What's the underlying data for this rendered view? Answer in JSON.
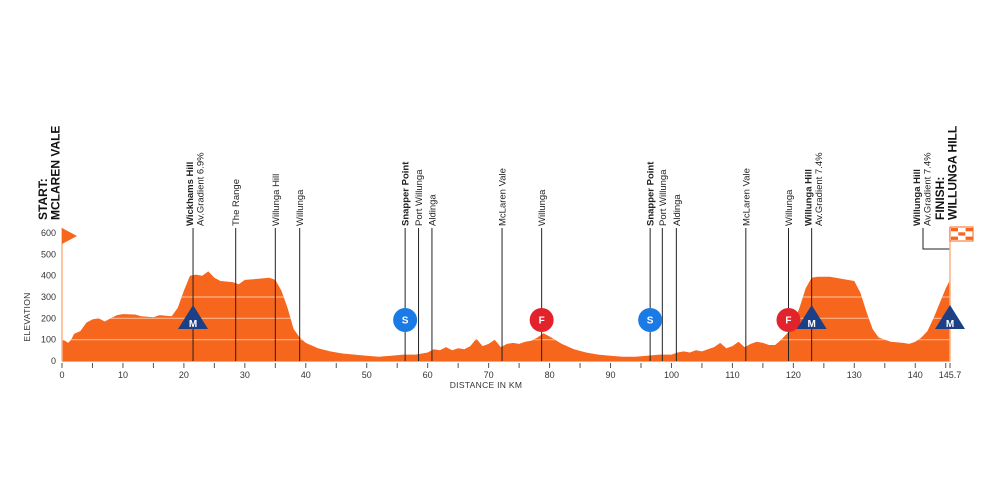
{
  "chart_data": {
    "type": "area",
    "xlabel": "DISTANCE IN KM",
    "ylabel": "ELEVATION",
    "xlim": [
      0,
      145.7
    ],
    "ylim": [
      0,
      600
    ],
    "x_ticks": [
      "0",
      "10",
      "20",
      "30",
      "40",
      "50",
      "60",
      "70",
      "80",
      "90",
      "100",
      "110",
      "120",
      "130",
      "140",
      "145.7"
    ],
    "y_ticks": [
      "0",
      "100",
      "200",
      "300",
      "400",
      "500",
      "600"
    ],
    "grid": "horizontal lines inside filled area",
    "colors": {
      "profile": "#f7661d",
      "grid": "#fbb487",
      "mountain": "#1c3f86",
      "sprint": "#1a7ae6",
      "feed": "#e3232b",
      "start_line": "#fbb487"
    },
    "profile": [
      [
        0,
        100
      ],
      [
        0.5,
        95
      ],
      [
        1,
        85
      ],
      [
        1.5,
        100
      ],
      [
        2,
        128
      ],
      [
        3,
        140
      ],
      [
        4,
        180
      ],
      [
        5,
        195
      ],
      [
        6,
        200
      ],
      [
        7,
        185
      ],
      [
        8,
        200
      ],
      [
        9,
        215
      ],
      [
        10,
        220
      ],
      [
        12,
        218
      ],
      [
        13,
        210
      ],
      [
        15,
        205
      ],
      [
        16,
        215
      ],
      [
        18,
        210
      ],
      [
        19,
        250
      ],
      [
        20,
        330
      ],
      [
        21,
        400
      ],
      [
        22,
        405
      ],
      [
        23,
        400
      ],
      [
        24,
        420
      ],
      [
        25,
        390
      ],
      [
        26,
        375
      ],
      [
        28,
        370
      ],
      [
        29,
        360
      ],
      [
        30,
        380
      ],
      [
        32,
        385
      ],
      [
        34,
        390
      ],
      [
        35,
        380
      ],
      [
        36,
        330
      ],
      [
        37,
        250
      ],
      [
        38,
        150
      ],
      [
        39,
        110
      ],
      [
        40,
        85
      ],
      [
        42,
        60
      ],
      [
        44,
        45
      ],
      [
        46,
        35
      ],
      [
        48,
        30
      ],
      [
        50,
        25
      ],
      [
        52,
        20
      ],
      [
        54,
        25
      ],
      [
        56,
        30
      ],
      [
        58,
        30
      ],
      [
        60,
        40
      ],
      [
        61,
        55
      ],
      [
        62,
        50
      ],
      [
        63,
        65
      ],
      [
        64,
        50
      ],
      [
        65,
        60
      ],
      [
        66,
        55
      ],
      [
        67,
        70
      ],
      [
        68,
        105
      ],
      [
        69,
        70
      ],
      [
        70,
        80
      ],
      [
        71,
        100
      ],
      [
        72,
        65
      ],
      [
        73,
        80
      ],
      [
        74,
        85
      ],
      [
        75,
        80
      ],
      [
        76,
        90
      ],
      [
        77,
        95
      ],
      [
        78,
        110
      ],
      [
        79,
        130
      ],
      [
        80,
        115
      ],
      [
        82,
        80
      ],
      [
        84,
        55
      ],
      [
        86,
        40
      ],
      [
        88,
        30
      ],
      [
        90,
        25
      ],
      [
        92,
        20
      ],
      [
        94,
        20
      ],
      [
        96,
        25
      ],
      [
        98,
        30
      ],
      [
        100,
        30
      ],
      [
        101,
        40
      ],
      [
        102,
        45
      ],
      [
        103,
        40
      ],
      [
        104,
        50
      ],
      [
        105,
        45
      ],
      [
        106,
        55
      ],
      [
        107,
        65
      ],
      [
        108,
        85
      ],
      [
        109,
        60
      ],
      [
        110,
        70
      ],
      [
        111,
        90
      ],
      [
        112,
        65
      ],
      [
        113,
        80
      ],
      [
        114,
        90
      ],
      [
        115,
        85
      ],
      [
        116,
        75
      ],
      [
        117,
        75
      ],
      [
        118,
        100
      ],
      [
        119,
        130
      ],
      [
        120,
        180
      ],
      [
        121,
        250
      ],
      [
        122,
        340
      ],
      [
        123,
        390
      ],
      [
        124,
        395
      ],
      [
        126,
        395
      ],
      [
        128,
        385
      ],
      [
        130,
        375
      ],
      [
        131,
        320
      ],
      [
        132,
        230
      ],
      [
        133,
        150
      ],
      [
        134,
        110
      ],
      [
        136,
        90
      ],
      [
        138,
        85
      ],
      [
        139,
        80
      ],
      [
        140,
        90
      ],
      [
        141,
        110
      ],
      [
        142,
        140
      ],
      [
        143,
        200
      ],
      [
        144,
        270
      ],
      [
        145,
        340
      ],
      [
        145.7,
        380
      ]
    ],
    "markers": [
      {
        "km": 21.5,
        "type": "mountain",
        "letter": "M"
      },
      {
        "km": 56.3,
        "type": "sprint",
        "letter": "S"
      },
      {
        "km": 78.7,
        "type": "feed",
        "letter": "F"
      },
      {
        "km": 96.5,
        "type": "sprint",
        "letter": "S"
      },
      {
        "km": 119.2,
        "type": "feed",
        "letter": "F"
      },
      {
        "km": 123,
        "type": "mountain",
        "letter": "M"
      },
      {
        "km": 145.7,
        "type": "mountain",
        "letter": "M"
      }
    ],
    "places": [
      {
        "km": 21.5,
        "lines": [
          "Wickhams Hill",
          "Av.Gradient 6.9%"
        ],
        "bold": true
      },
      {
        "km": 28.5,
        "lines": [
          "The Range"
        ],
        "bold": false
      },
      {
        "km": 35,
        "lines": [
          "Willunga Hill"
        ],
        "bold": false
      },
      {
        "km": 39,
        "lines": [
          "Willunga"
        ],
        "bold": false
      },
      {
        "km": 56.3,
        "lines": [
          "Snapper Point"
        ],
        "bold": true
      },
      {
        "km": 58.5,
        "lines": [
          "Port Willunga"
        ],
        "bold": false
      },
      {
        "km": 60.7,
        "lines": [
          "Aldinga"
        ],
        "bold": false
      },
      {
        "km": 72.2,
        "lines": [
          "McLaren Vale"
        ],
        "bold": false
      },
      {
        "km": 78.7,
        "lines": [
          "Willunga"
        ],
        "bold": false
      },
      {
        "km": 96.5,
        "lines": [
          "Snapper Point"
        ],
        "bold": true
      },
      {
        "km": 98.5,
        "lines": [
          "Port Willunga"
        ],
        "bold": false
      },
      {
        "km": 100.8,
        "lines": [
          "Aldinga"
        ],
        "bold": false
      },
      {
        "km": 112.2,
        "lines": [
          "McLaren Vale"
        ],
        "bold": false
      },
      {
        "km": 119.2,
        "lines": [
          "Willunga"
        ],
        "bold": false
      },
      {
        "km": 123,
        "lines": [
          "Willunga Hill",
          "Av.Gradient 7.4%"
        ],
        "bold": true
      }
    ],
    "finish_climb": {
      "km": 145.7,
      "lines": [
        "Willunga Hill",
        "Av.Gradient 7.4%"
      ]
    },
    "start": {
      "km": 0,
      "lines": [
        "START:",
        "MCLAREN VALE"
      ]
    },
    "finish": {
      "km": 145.7,
      "lines": [
        "FINISH:",
        "WILLUNGA HILL"
      ]
    }
  }
}
